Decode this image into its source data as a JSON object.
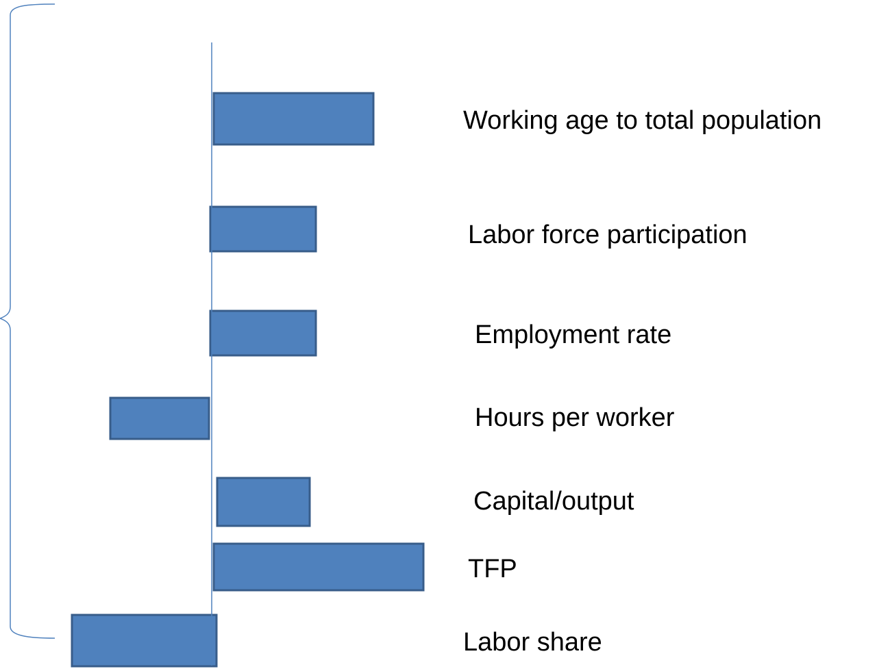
{
  "labels": [
    "Working age to total population",
    "Labor force participation",
    "Employment rate",
    "Hours per worker",
    "Capital/output",
    "TFP",
    "Labor share"
  ]
}
